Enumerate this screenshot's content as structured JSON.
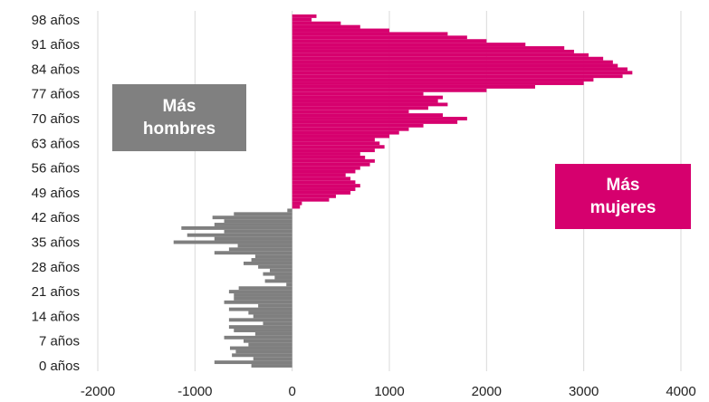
{
  "chart_data": {
    "type": "bar",
    "orientation": "horizontal",
    "title": "",
    "xlabel": "",
    "ylabel": "",
    "xlim": [
      -2000,
      4000
    ],
    "xticks": [
      -2000,
      -1000,
      0,
      1000,
      2000,
      3000,
      4000
    ],
    "ylim": [
      0,
      100
    ],
    "yticks": [
      0,
      7,
      14,
      21,
      28,
      35,
      42,
      49,
      56,
      63,
      70,
      77,
      84,
      91,
      98
    ],
    "ytick_labels": [
      "0 años",
      "7 años",
      "14 años",
      "21 años",
      "28 años",
      "35 años",
      "42 años",
      "49 años",
      "56 años",
      "63 años",
      "70 años",
      "77 años",
      "84 años",
      "91 años",
      "98 años"
    ],
    "grid": "vertical",
    "legend": "none",
    "colors": {
      "positive": "#d6006e",
      "negative": "#7f7f7f",
      "grid": "#d9d9d9",
      "annotation_men": "#808080",
      "annotation_women": "#d6006e"
    },
    "ages": [
      0,
      1,
      2,
      3,
      4,
      5,
      6,
      7,
      8,
      9,
      10,
      11,
      12,
      13,
      14,
      15,
      16,
      17,
      18,
      19,
      20,
      21,
      22,
      23,
      24,
      25,
      26,
      27,
      28,
      29,
      30,
      31,
      32,
      33,
      34,
      35,
      36,
      37,
      38,
      39,
      40,
      41,
      42,
      43,
      44,
      45,
      46,
      47,
      48,
      49,
      50,
      51,
      52,
      53,
      54,
      55,
      56,
      57,
      58,
      59,
      60,
      61,
      62,
      63,
      64,
      65,
      66,
      67,
      68,
      69,
      70,
      71,
      72,
      73,
      74,
      75,
      76,
      77,
      78,
      79,
      80,
      81,
      82,
      83,
      84,
      85,
      86,
      87,
      88,
      89,
      90,
      91,
      92,
      93,
      94,
      95,
      96,
      97,
      98,
      99
    ],
    "values": [
      -420,
      -800,
      -400,
      -620,
      -580,
      -640,
      -450,
      -500,
      -700,
      -380,
      -600,
      -650,
      -300,
      -650,
      -400,
      -450,
      -650,
      -350,
      -700,
      -600,
      -600,
      -650,
      -550,
      -60,
      -280,
      -180,
      -300,
      -230,
      -350,
      -500,
      -420,
      -380,
      -800,
      -650,
      -560,
      -1220,
      -800,
      -1080,
      -700,
      -1140,
      -800,
      -700,
      -820,
      -600,
      -50,
      80,
      100,
      380,
      450,
      600,
      650,
      700,
      650,
      600,
      550,
      650,
      700,
      800,
      850,
      750,
      700,
      850,
      950,
      900,
      850,
      1000,
      1100,
      1200,
      1350,
      1700,
      1800,
      1550,
      1200,
      1400,
      1600,
      1500,
      1550,
      1350,
      2000,
      2500,
      3000,
      3100,
      3400,
      3500,
      3450,
      3350,
      3300,
      3200,
      3050,
      2900,
      2800,
      2400,
      2000,
      1800,
      1600,
      1000,
      700,
      500,
      200,
      250
    ],
    "annotations": [
      "Más\nhombres",
      "Más\nmujeres"
    ]
  }
}
